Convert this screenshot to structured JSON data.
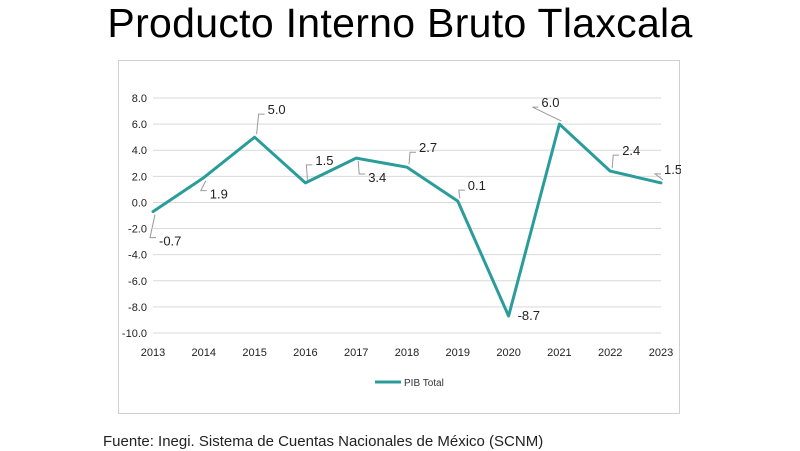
{
  "title": "Producto Interno Bruto Tlaxcala",
  "source": "Fuente: Inegi. Sistema de Cuentas Nacionales de México (SCNM)",
  "colors": {
    "series": "#2a9d9b",
    "grid": "#d9d9d9",
    "label_line": "#9a9a9a"
  },
  "chart_data": {
    "type": "line",
    "title": "",
    "xlabel": "",
    "ylabel": "",
    "categories": [
      "2013",
      "2014",
      "2015",
      "2016",
      "2017",
      "2018",
      "2019",
      "2020",
      "2021",
      "2022",
      "2023"
    ],
    "series": [
      {
        "name": "PIB Total",
        "values": [
          -0.7,
          1.9,
          5.0,
          1.5,
          3.4,
          2.7,
          0.1,
          -8.7,
          6.0,
          2.4,
          1.5
        ],
        "labels": [
          "-0.7",
          "1.9",
          "5.0",
          "1.5",
          "3.4",
          "2.7",
          "0.1",
          "-8.7",
          "6.0",
          "2.4",
          "1.5"
        ]
      }
    ],
    "ylim": [
      -10.0,
      8.0
    ],
    "yticks": [
      "8.0",
      "6.0",
      "4.0",
      "2.0",
      "0.0",
      "-2.0",
      "-4.0",
      "-6.0",
      "-8.0",
      "-10.0"
    ],
    "grid": true,
    "legend_position": "bottom-center"
  }
}
